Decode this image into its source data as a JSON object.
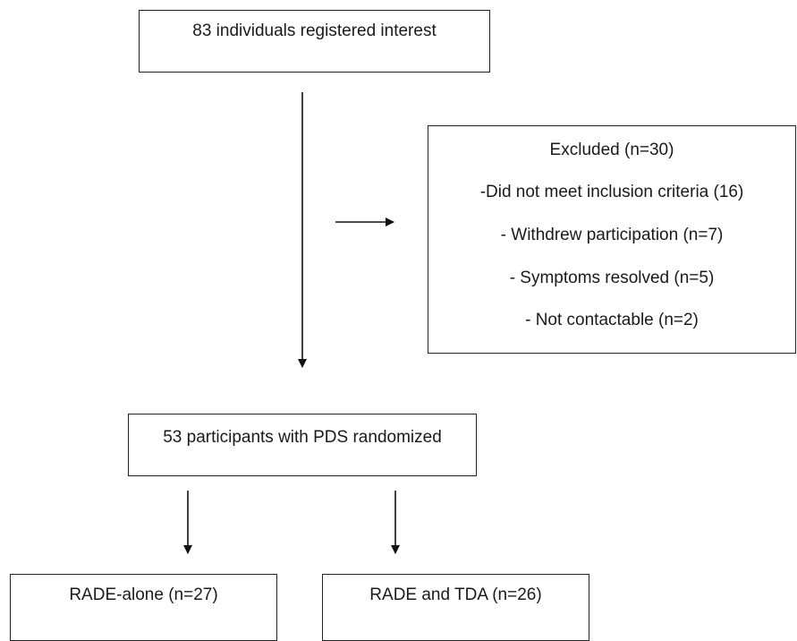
{
  "top_box": {
    "text": "83 individuals registered interest"
  },
  "excluded_box": {
    "title": "Excluded (n=30)",
    "reasons": [
      "-Did not meet inclusion criteria (16)",
      "- Withdrew participation (n=7)",
      "- Symptoms resolved (n=5)",
      "- Not contactable (n=2)"
    ]
  },
  "randomized_box": {
    "text": "53 participants with PDS randomized"
  },
  "arms": [
    {
      "label": "RADE-alone (n=27)"
    },
    {
      "label": "RADE and TDA (n=26)"
    }
  ]
}
